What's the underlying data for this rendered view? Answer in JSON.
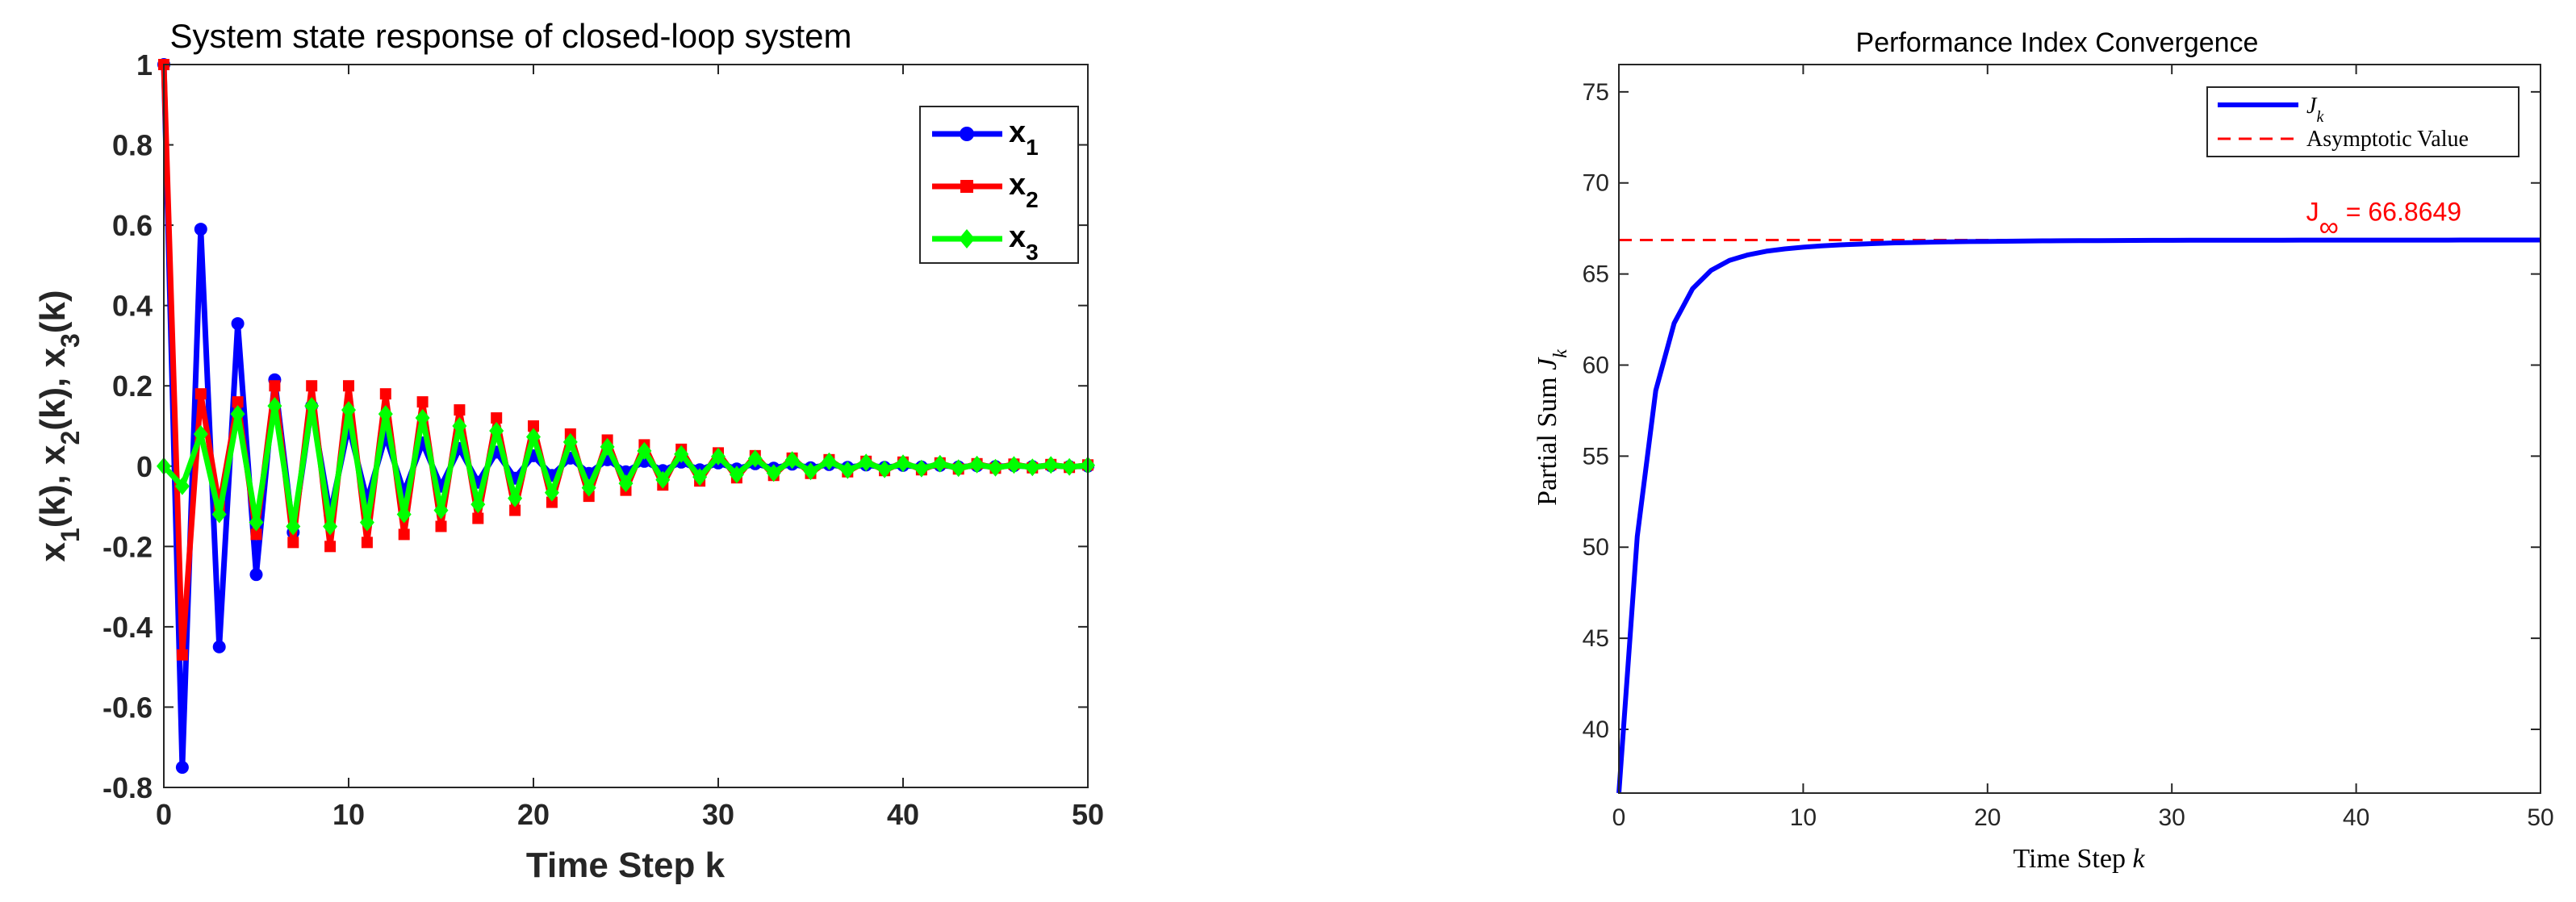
{
  "chart_data": [
    {
      "type": "line",
      "title": "System state response of closed-loop system",
      "xlabel": "Time Step k",
      "ylabel_parts": [
        "x",
        "1",
        "(k), x",
        "2",
        "(k), x",
        "3",
        "(k)"
      ],
      "xlim": [
        0,
        50
      ],
      "ylim": [
        -0.8,
        1
      ],
      "xticks": [
        0,
        10,
        20,
        30,
        40,
        50
      ],
      "yticks": [
        -0.8,
        -0.6,
        -0.4,
        -0.2,
        0,
        0.2,
        0.4,
        0.6,
        0.8,
        1
      ],
      "grid": false,
      "legend_position": "top-right",
      "x": [
        0,
        1,
        2,
        3,
        4,
        5,
        6,
        7,
        8,
        9,
        10,
        11,
        12,
        13,
        14,
        15,
        16,
        17,
        18,
        19,
        20,
        21,
        22,
        23,
        24,
        25,
        26,
        27,
        28,
        29,
        30,
        31,
        32,
        33,
        34,
        35,
        36,
        37,
        38,
        39,
        40,
        41,
        42,
        43,
        44,
        45,
        46,
        47,
        48,
        49,
        50
      ],
      "series": [
        {
          "name": "x",
          "subscript": "1",
          "color": "#0000ff",
          "marker": "circle",
          "values": [
            1.0,
            -0.75,
            0.59,
            -0.45,
            0.355,
            -0.27,
            0.215,
            -0.165,
            0.15,
            -0.12,
            0.1,
            -0.085,
            0.075,
            -0.065,
            0.058,
            -0.05,
            0.044,
            -0.04,
            0.035,
            -0.03,
            0.026,
            -0.023,
            0.02,
            -0.018,
            0.016,
            -0.014,
            0.012,
            -0.011,
            0.01,
            -0.009,
            0.008,
            -0.007,
            0.006,
            -0.005,
            0.005,
            -0.004,
            0.004,
            -0.003,
            0.003,
            -0.003,
            0.002,
            -0.002,
            0.002,
            -0.002,
            0.001,
            -0.001,
            0.001,
            -0.001,
            0.001,
            -0.001,
            0.0
          ]
        },
        {
          "name": "x",
          "subscript": "2",
          "color": "#ff0000",
          "marker": "square",
          "values": [
            1.0,
            -0.47,
            0.18,
            -0.1,
            0.16,
            -0.17,
            0.2,
            -0.19,
            0.2,
            -0.2,
            0.2,
            -0.19,
            0.18,
            -0.17,
            0.16,
            -0.15,
            0.14,
            -0.13,
            0.12,
            -0.11,
            0.1,
            -0.09,
            0.08,
            -0.075,
            0.065,
            -0.06,
            0.053,
            -0.047,
            0.042,
            -0.037,
            0.033,
            -0.029,
            0.026,
            -0.023,
            0.02,
            -0.018,
            0.016,
            -0.014,
            0.012,
            -0.011,
            0.01,
            -0.009,
            0.008,
            -0.007,
            0.006,
            -0.005,
            0.005,
            -0.004,
            0.004,
            -0.003,
            0.003
          ]
        },
        {
          "name": "x",
          "subscript": "3",
          "color": "#00ff00",
          "marker": "diamond",
          "values": [
            0.0,
            -0.05,
            0.08,
            -0.12,
            0.13,
            -0.14,
            0.15,
            -0.15,
            0.15,
            -0.15,
            0.14,
            -0.14,
            0.13,
            -0.12,
            0.12,
            -0.11,
            0.1,
            -0.095,
            0.088,
            -0.08,
            0.073,
            -0.066,
            0.06,
            -0.054,
            0.048,
            -0.043,
            0.038,
            -0.034,
            0.03,
            -0.027,
            0.024,
            -0.021,
            0.019,
            -0.017,
            0.015,
            -0.013,
            0.012,
            -0.01,
            0.009,
            -0.008,
            0.007,
            -0.006,
            0.006,
            -0.005,
            0.004,
            -0.004,
            0.003,
            -0.003,
            0.003,
            -0.002,
            0.002
          ]
        }
      ]
    },
    {
      "type": "line",
      "title": "Performance Index Convergence",
      "xlabel_parts": [
        "Time Step ",
        "k"
      ],
      "ylabel_parts": [
        "Partial Sum ",
        "J",
        "k"
      ],
      "xlim": [
        0,
        50
      ],
      "ylim": [
        36.5,
        76.5
      ],
      "xticks": [
        0,
        10,
        20,
        30,
        40,
        50
      ],
      "yticks": [
        40,
        45,
        50,
        55,
        60,
        65,
        70,
        75
      ],
      "grid": false,
      "legend_position": "top-right",
      "x": [
        0,
        1,
        2,
        3,
        4,
        5,
        6,
        7,
        8,
        9,
        10,
        11,
        12,
        13,
        14,
        15,
        16,
        17,
        18,
        19,
        20,
        21,
        22,
        23,
        24,
        25,
        26,
        27,
        28,
        29,
        30,
        31,
        32,
        33,
        34,
        35,
        36,
        37,
        38,
        39,
        40,
        41,
        42,
        43,
        44,
        45,
        46,
        47,
        48,
        49,
        50
      ],
      "series": [
        {
          "name": "J",
          "subscript": "k",
          "color": "#0000ff",
          "style": "solid",
          "values": [
            36.5,
            50.6,
            58.6,
            62.3,
            64.2,
            65.2,
            65.75,
            66.05,
            66.25,
            66.38,
            66.47,
            66.54,
            66.6,
            66.64,
            66.68,
            66.71,
            66.73,
            66.75,
            66.77,
            66.78,
            66.79,
            66.8,
            66.81,
            66.82,
            66.825,
            66.83,
            66.835,
            66.84,
            66.843,
            66.846,
            66.849,
            66.851,
            66.853,
            66.855,
            66.856,
            66.857,
            66.858,
            66.859,
            66.86,
            66.861,
            66.861,
            66.862,
            66.862,
            66.863,
            66.863,
            66.863,
            66.864,
            66.864,
            66.864,
            66.864,
            66.865
          ]
        },
        {
          "name": "Asymptotic Value",
          "color": "#ff0000",
          "style": "dashed",
          "value": 66.8649
        }
      ],
      "annotation": {
        "base": "J",
        "subscript": "∞",
        "text": " = 66.8649",
        "x": 41.5,
        "y": 66.8649,
        "color": "#ff0000"
      }
    }
  ]
}
